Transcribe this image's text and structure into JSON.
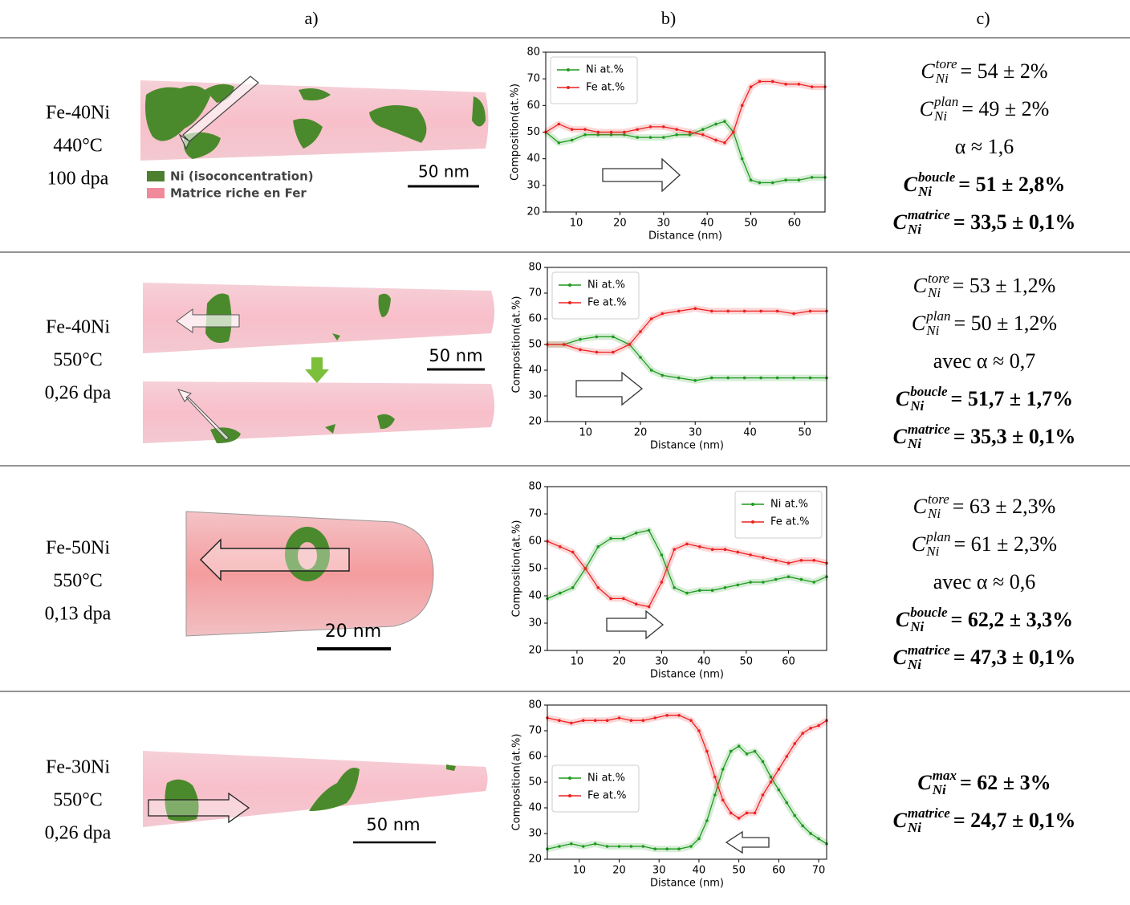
{
  "table": {
    "header": [
      "a)",
      "b)",
      "c)"
    ],
    "rows": [
      {
        "label": [
          "Fe-40Ni",
          "440°C",
          "100 dpa"
        ],
        "image": {
          "legend": [
            "Ni (isoconcentration)",
            "Matrice riche en Fer"
          ],
          "scale": "50 nm"
        },
        "formulas": [
          {
            "base": "C",
            "sup": "tore",
            "sub": "Ni",
            "rhs": "= 54 ± 2%",
            "bold": false
          },
          {
            "base": "C",
            "sup": "plan",
            "sub": "Ni",
            "rhs": "= 49 ± 2%",
            "bold": false
          },
          {
            "text": "α ≈ 1,6",
            "bold": false
          },
          {
            "base": "C",
            "sup": "boucle",
            "sub": "Ni",
            "rhs": "= 51 ± 2,8%",
            "bold": true
          },
          {
            "base": "C",
            "sup": "matrice",
            "sub": "Ni",
            "rhs": "= 33,5 ± 0,1%",
            "bold": true
          }
        ]
      },
      {
        "label": [
          "Fe-40Ni",
          "550°C",
          "0,26 dpa"
        ],
        "image": {
          "scale": "50 nm"
        },
        "formulas": [
          {
            "base": "C",
            "sup": "tore",
            "sub": "Ni",
            "rhs": "= 53 ± 1,2%",
            "bold": false
          },
          {
            "base": "C",
            "sup": "plan",
            "sub": "Ni",
            "rhs": "= 50 ± 1,2%",
            "bold": false
          },
          {
            "text": "avec α ≈ 0,7",
            "bold": false
          },
          {
            "base": "C",
            "sup": "boucle",
            "sub": "Ni",
            "rhs": "= 51,7 ± 1,7%",
            "bold": true
          },
          {
            "base": "C",
            "sup": "matrice",
            "sub": "Ni",
            "rhs": "= 35,3 ± 0,1%",
            "bold": true
          }
        ]
      },
      {
        "label": [
          "Fe-50Ni",
          "550°C",
          "0,13 dpa"
        ],
        "image": {
          "scale": "20 nm"
        },
        "formulas": [
          {
            "base": "C",
            "sup": "tore",
            "sub": "Ni",
            "rhs": "= 63 ± 2,3%",
            "bold": false
          },
          {
            "base": "C",
            "sup": "plan",
            "sub": "Ni",
            "rhs": "= 61 ± 2,3%",
            "bold": false
          },
          {
            "text": "avec α ≈ 0,6",
            "bold": false
          },
          {
            "base": "C",
            "sup": "boucle",
            "sub": "Ni",
            "rhs": "= 62,2 ± 3,3%",
            "bold": true
          },
          {
            "base": "C",
            "sup": "matrice",
            "sub": "Ni",
            "rhs": "= 47,3 ± 0,1%",
            "bold": true
          }
        ]
      },
      {
        "label": [
          "Fe-30Ni",
          "550°C",
          "0,26 dpa"
        ],
        "image": {
          "scale": "50 nm"
        },
        "formulas": [
          {
            "base": "C",
            "sup": "max",
            "sub": "Ni",
            "rhs": "= 62 ± 3%",
            "bold": true
          },
          {
            "base": "C",
            "sup": "matrice",
            "sub": "Ni",
            "rhs": "= 24,7 ± 0,1%",
            "bold": true
          }
        ]
      }
    ]
  },
  "chart_data": [
    {
      "type": "line",
      "xlabel": "Distance (nm)",
      "ylabel": "Composition(at.%)",
      "legend": "upper left",
      "xlim": [
        3,
        67
      ],
      "ylim": [
        20,
        80
      ],
      "xticks": [
        10,
        20,
        30,
        40,
        50,
        60
      ],
      "yticks": [
        20,
        30,
        40,
        50,
        60,
        70,
        80
      ],
      "x": [
        3,
        6,
        9,
        12,
        15,
        18,
        21,
        24,
        27,
        30,
        33,
        36,
        39,
        42,
        44,
        46,
        48,
        50,
        52,
        55,
        58,
        61,
        64,
        67
      ],
      "series": [
        {
          "name": "Ni at.%",
          "color": "#1e9a1e",
          "values": [
            50,
            46,
            47,
            49,
            49,
            49,
            49,
            48,
            48,
            48,
            49,
            49,
            51,
            53,
            54,
            50,
            40,
            32,
            31,
            31,
            32,
            32,
            33,
            33
          ]
        },
        {
          "name": "Fe at.%",
          "color": "#ee2020",
          "values": [
            50,
            53,
            51,
            51,
            50,
            50,
            50,
            51,
            52,
            52,
            51,
            50,
            49,
            47,
            46,
            50,
            60,
            67,
            69,
            69,
            68,
            68,
            67,
            67
          ]
        }
      ]
    },
    {
      "type": "line",
      "xlabel": "Distance (nm)",
      "ylabel": "Composition(at.%)",
      "legend": "upper left",
      "xlim": [
        3,
        54
      ],
      "ylim": [
        20,
        80
      ],
      "xticks": [
        10,
        20,
        30,
        40,
        50
      ],
      "yticks": [
        20,
        30,
        40,
        50,
        60,
        70,
        80
      ],
      "x": [
        3,
        6,
        9,
        12,
        15,
        18,
        20,
        22,
        24,
        27,
        30,
        33,
        36,
        39,
        42,
        45,
        48,
        51,
        54
      ],
      "series": [
        {
          "name": "Ni at.%",
          "color": "#1e9a1e",
          "values": [
            50,
            50,
            52,
            53,
            53,
            50,
            45,
            40,
            38,
            37,
            36,
            37,
            37,
            37,
            37,
            37,
            37,
            37,
            37
          ]
        },
        {
          "name": "Fe at.%",
          "color": "#ee2020",
          "values": [
            50,
            50,
            48,
            47,
            47,
            50,
            55,
            60,
            62,
            63,
            64,
            63,
            63,
            63,
            63,
            63,
            62,
            63,
            63
          ]
        }
      ]
    },
    {
      "type": "line",
      "xlabel": "Distance (nm)",
      "ylabel": "Composition(at.%)",
      "legend": "upper right",
      "xlim": [
        3,
        69
      ],
      "ylim": [
        20,
        80
      ],
      "xticks": [
        10,
        20,
        30,
        40,
        50,
        60
      ],
      "yticks": [
        20,
        30,
        40,
        50,
        60,
        70,
        80
      ],
      "x": [
        3,
        6,
        9,
        12,
        15,
        18,
        21,
        24,
        27,
        30,
        33,
        36,
        39,
        42,
        45,
        48,
        51,
        54,
        57,
        60,
        63,
        66,
        69
      ],
      "series": [
        {
          "name": "Ni at.%",
          "color": "#1e9a1e",
          "values": [
            39,
            41,
            43,
            50,
            58,
            61,
            61,
            63,
            64,
            55,
            43,
            41,
            42,
            42,
            43,
            44,
            45,
            45,
            46,
            47,
            46,
            45,
            47
          ]
        },
        {
          "name": "Fe at.%",
          "color": "#ee2020",
          "values": [
            60,
            58,
            56,
            50,
            43,
            39,
            39,
            37,
            36,
            45,
            57,
            59,
            58,
            57,
            57,
            56,
            55,
            54,
            53,
            52,
            53,
            53,
            52
          ]
        }
      ]
    },
    {
      "type": "line",
      "xlabel": "Distance (nm)",
      "ylabel": "Composition(at.%)",
      "legend": "center left",
      "xlim": [
        2,
        72
      ],
      "ylim": [
        20,
        80
      ],
      "xticks": [
        10,
        20,
        30,
        40,
        50,
        60,
        70
      ],
      "yticks": [
        20,
        30,
        40,
        50,
        60,
        70,
        80
      ],
      "x": [
        2,
        5,
        8,
        11,
        14,
        17,
        20,
        23,
        26,
        29,
        32,
        35,
        38,
        40,
        42,
        44,
        46,
        48,
        50,
        52,
        54,
        56,
        58,
        60,
        62,
        64,
        66,
        68,
        70,
        72
      ],
      "series": [
        {
          "name": "Ni at.%",
          "color": "#1e9a1e",
          "values": [
            24,
            25,
            26,
            25,
            26,
            25,
            25,
            25,
            25,
            24,
            24,
            24,
            25,
            28,
            35,
            45,
            55,
            62,
            64,
            61,
            62,
            58,
            52,
            47,
            42,
            37,
            33,
            30,
            28,
            26
          ]
        },
        {
          "name": "Fe at.%",
          "color": "#ee2020",
          "values": [
            75,
            74,
            73,
            74,
            74,
            74,
            75,
            74,
            74,
            75,
            76,
            76,
            74,
            70,
            62,
            52,
            43,
            38,
            36,
            38,
            38,
            45,
            50,
            55,
            60,
            65,
            69,
            71,
            72,
            74
          ]
        }
      ]
    }
  ]
}
